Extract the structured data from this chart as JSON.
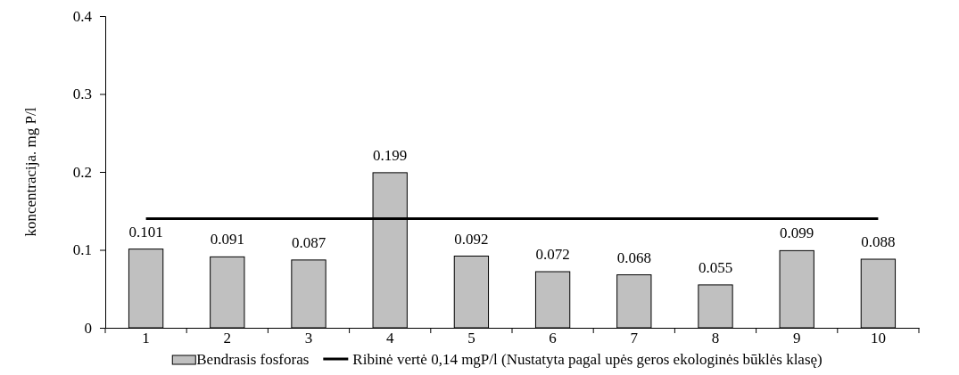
{
  "chart_data": {
    "type": "bar",
    "ylabel": "koncentracija.  mg P/l",
    "categories": [
      "1",
      "2",
      "3",
      "4",
      "5",
      "6",
      "7",
      "8",
      "9",
      "10"
    ],
    "series": [
      {
        "name": "Bendrasis fosforas",
        "color": "#c0c0c0",
        "values": [
          0.101,
          0.091,
          0.087,
          0.199,
          0.092,
          0.072,
          0.068,
          0.055,
          0.099,
          0.088
        ],
        "value_labels": [
          "0.101",
          "0.091",
          "0.087",
          "0.199",
          "0.092",
          "0.072",
          "0.068",
          "0.055",
          "0.099",
          "0.088"
        ]
      },
      {
        "name": "Ribinė vertė 0,14 mgP/l (Nustatyta pagal upės geros ekologinės būklės klasę)",
        "type": "line",
        "color": "#000000",
        "values": [
          0.14,
          0.14,
          0.14,
          0.14,
          0.14,
          0.14,
          0.14,
          0.14,
          0.14,
          0.14
        ]
      }
    ],
    "ylim": [
      0,
      0.4
    ],
    "yticks": [
      0,
      0.1,
      0.2,
      0.3,
      0.4
    ],
    "grid": false,
    "legend": "bottom"
  }
}
